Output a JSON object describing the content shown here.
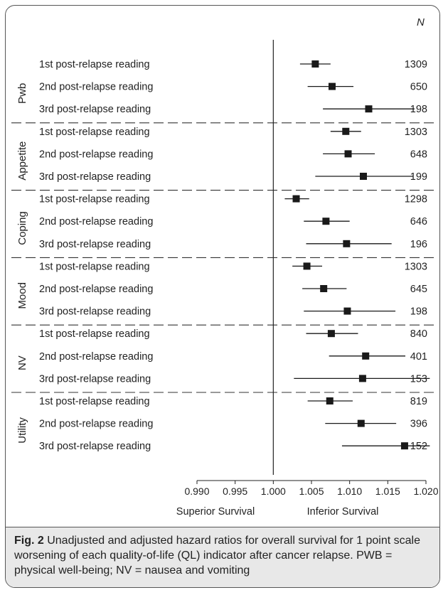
{
  "chart_data": {
    "type": "forest",
    "n_header": "N",
    "x_ticks": [
      "0.990",
      "0.995",
      "1.000",
      "1.005",
      "1.010",
      "1.015",
      "1.020"
    ],
    "xlim": [
      0.99,
      1.02
    ],
    "reference_line": 1.0,
    "x_side_labels": {
      "left": "Superior Survival",
      "right": "Inferior Survival"
    },
    "groups": [
      {
        "name": "Pwb",
        "rows": [
          {
            "label": "1st post-relapse reading",
            "estimate": 1.0055,
            "lower": 1.0035,
            "upper": 1.0075,
            "n": "1309"
          },
          {
            "label": "2nd post-relapse reading",
            "estimate": 1.0077,
            "lower": 1.0045,
            "upper": 1.0105,
            "n": "650"
          },
          {
            "label": "3rd post-relapse reading",
            "estimate": 1.0125,
            "lower": 1.0065,
            "upper": 1.0185,
            "n": "198"
          }
        ]
      },
      {
        "name": "Appetite",
        "rows": [
          {
            "label": "1st post-relapse reading",
            "estimate": 1.0095,
            "lower": 1.0075,
            "upper": 1.0115,
            "n": "1303"
          },
          {
            "label": "2nd post-relapse reading",
            "estimate": 1.0098,
            "lower": 1.0065,
            "upper": 1.0133,
            "n": "648"
          },
          {
            "label": "3rd post-relapse reading",
            "estimate": 1.0118,
            "lower": 1.0055,
            "upper": 1.0183,
            "n": "199"
          }
        ]
      },
      {
        "name": "Coping",
        "rows": [
          {
            "label": "1st post-relapse reading",
            "estimate": 1.003,
            "lower": 1.0015,
            "upper": 1.0047,
            "n": "1298"
          },
          {
            "label": "2nd post-relapse reading",
            "estimate": 1.0069,
            "lower": 1.004,
            "upper": 1.01,
            "n": "646"
          },
          {
            "label": "3rd post-relapse reading",
            "estimate": 1.0096,
            "lower": 1.0043,
            "upper": 1.0155,
            "n": "196"
          }
        ]
      },
      {
        "name": "Mood",
        "rows": [
          {
            "label": "1st post-relapse reading",
            "estimate": 1.0044,
            "lower": 1.0025,
            "upper": 1.0064,
            "n": "1303"
          },
          {
            "label": "2nd post-relapse reading",
            "estimate": 1.0066,
            "lower": 1.0038,
            "upper": 1.0096,
            "n": "645"
          },
          {
            "label": "3rd post-relapse reading",
            "estimate": 1.0097,
            "lower": 1.004,
            "upper": 1.016,
            "n": "198"
          }
        ]
      },
      {
        "name": "NV",
        "rows": [
          {
            "label": "1st post-relapse reading",
            "estimate": 1.0076,
            "lower": 1.0043,
            "upper": 1.0111,
            "n": "840"
          },
          {
            "label": "2nd post-relapse reading",
            "estimate": 1.0121,
            "lower": 1.0073,
            "upper": 1.0173,
            "n": "401"
          },
          {
            "label": "3rd post-relapse reading",
            "estimate": 1.0117,
            "lower": 1.0027,
            "upper": 1.0205,
            "n": "153"
          }
        ]
      },
      {
        "name": "Utility",
        "rows": [
          {
            "label": "1st post-relapse reading",
            "estimate": 1.0074,
            "lower": 1.0045,
            "upper": 1.0104,
            "n": "819"
          },
          {
            "label": "2nd post-relapse reading",
            "estimate": 1.0115,
            "lower": 1.0068,
            "upper": 1.0161,
            "n": "396"
          },
          {
            "label": "3rd post-relapse reading",
            "estimate": 1.0172,
            "lower": 1.009,
            "upper": 1.0205,
            "n": "152"
          }
        ]
      }
    ]
  },
  "caption": {
    "label": "Fig. 2",
    "text": " Unadjusted and adjusted hazard ratios for overall survival for 1 point scale worsening of each quality-of-life (QL) indicator after cancer relapse. PWB = physical well-being; NV = nausea and vomiting"
  },
  "colors": {
    "marker": "#1a1a1a",
    "line": "#1a1a1a",
    "caption_bg": "#e8e8e8",
    "frame": "#555555"
  }
}
